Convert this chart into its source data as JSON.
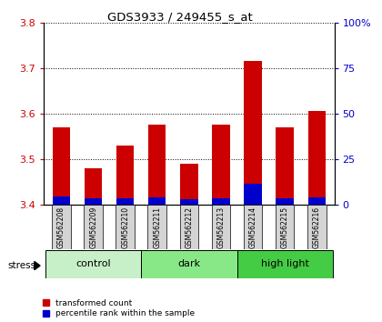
{
  "title": "GDS3933 / 249455_s_at",
  "samples": [
    "GSM562208",
    "GSM562209",
    "GSM562210",
    "GSM562211",
    "GSM562212",
    "GSM562213",
    "GSM562214",
    "GSM562215",
    "GSM562216"
  ],
  "red_values": [
    3.57,
    3.48,
    3.53,
    3.575,
    3.49,
    3.575,
    3.715,
    3.57,
    3.605
  ],
  "blue_values": [
    0.018,
    0.013,
    0.013,
    0.015,
    0.012,
    0.013,
    0.045,
    0.013,
    0.015
  ],
  "y_min": 3.4,
  "y_max": 3.8,
  "y_ticks": [
    3.4,
    3.5,
    3.6,
    3.7,
    3.8
  ],
  "right_y_ticks": [
    0,
    25,
    50,
    75,
    100
  ],
  "groups": [
    {
      "label": "control",
      "start": 0,
      "end": 3,
      "color": "#c8f0c8"
    },
    {
      "label": "dark",
      "start": 3,
      "end": 6,
      "color": "#88e888"
    },
    {
      "label": "high light",
      "start": 6,
      "end": 9,
      "color": "#44cc44"
    }
  ],
  "stress_label": "stress",
  "legend": [
    "transformed count",
    "percentile rank within the sample"
  ],
  "bar_width": 0.55,
  "plot_bg": "#ffffff",
  "grid_color": "#000000",
  "red_color": "#cc0000",
  "blue_color": "#0000cc",
  "tick_label_color_left": "#cc0000",
  "tick_label_color_right": "#0000cc",
  "sample_box_color": "#d4d4d4"
}
